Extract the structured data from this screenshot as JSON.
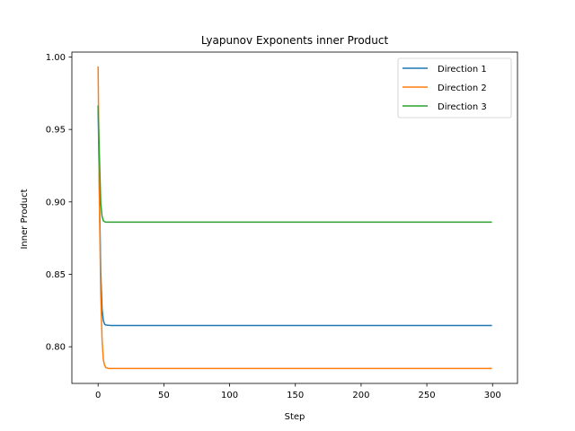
{
  "chart_data": {
    "type": "line",
    "title": "Lyapunov Exponents inner Product",
    "xlabel": "Step",
    "ylabel": "Inner Product",
    "xlim": [
      -19.95,
      318.95
    ],
    "ylim": [
      0.7747,
      1.0034
    ],
    "x_ticks": [
      0,
      50,
      100,
      150,
      200,
      250,
      300
    ],
    "y_ticks": [
      0.8,
      0.85,
      0.9,
      0.95,
      1.0
    ],
    "x_tick_labels": [
      "0",
      "50",
      "100",
      "150",
      "200",
      "250",
      "300"
    ],
    "y_tick_labels": [
      "0.80",
      "0.85",
      "0.90",
      "0.95",
      "1.00"
    ],
    "grid": false,
    "legend_position": "upper right",
    "series": [
      {
        "name": "Direction 1",
        "color": "#1f77b4",
        "x": [
          0,
          1,
          2,
          3,
          4,
          5,
          6,
          8,
          10,
          299
        ],
        "values": [
          0.966,
          0.905,
          0.852,
          0.826,
          0.818,
          0.8155,
          0.815,
          0.8148,
          0.8147,
          0.8147
        ]
      },
      {
        "name": "Direction 2",
        "color": "#ff7f0e",
        "x": [
          0,
          1,
          2,
          3,
          4,
          5,
          6,
          8,
          10,
          299
        ],
        "values": [
          0.993,
          0.898,
          0.836,
          0.805,
          0.791,
          0.787,
          0.7855,
          0.785,
          0.785,
          0.785
        ]
      },
      {
        "name": "Direction 3",
        "color": "#2ca02c",
        "x": [
          0,
          1,
          2,
          3,
          4,
          5,
          6,
          8,
          10,
          299
        ],
        "values": [
          0.966,
          0.931,
          0.899,
          0.89,
          0.887,
          0.8863,
          0.886,
          0.886,
          0.886,
          0.886
        ]
      }
    ]
  }
}
